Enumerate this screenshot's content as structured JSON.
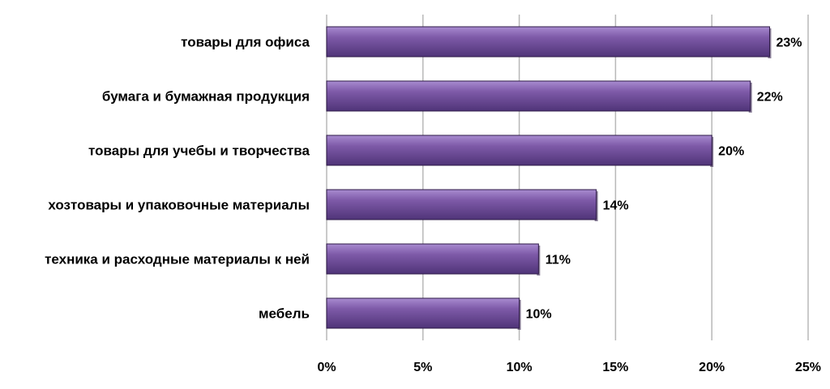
{
  "chart_data": {
    "type": "bar",
    "orientation": "horizontal",
    "categories": [
      "товары для офиса",
      "бумага и бумажная продукция",
      "товары для учебы и творчества",
      "хозтовары и упаковочные материалы",
      "техника и расходные материалы к ней",
      "мебель"
    ],
    "values": [
      23,
      22,
      20,
      14,
      11,
      10
    ],
    "data_labels": [
      "23%",
      "22%",
      "20%",
      "14%",
      "11%",
      "10%"
    ],
    "xlim": [
      0,
      25
    ],
    "x_ticks": [
      0,
      5,
      10,
      15,
      20,
      25
    ],
    "x_tick_labels": [
      "0%",
      "5%",
      "10%",
      "15%",
      "20%",
      "25%"
    ],
    "title": "",
    "xlabel": "",
    "ylabel": "",
    "grid": "vertical",
    "legend": "none",
    "colors": {
      "bar_fill": "#7e5aa8",
      "bar_light": "#a88bd0",
      "bar_dark": "#4f3478",
      "bar_stroke": "#2e1a47",
      "grid": "#b8b8b8"
    }
  }
}
